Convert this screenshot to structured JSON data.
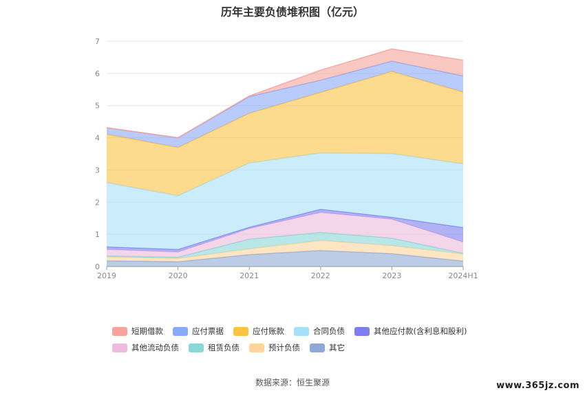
{
  "chart_data": {
    "type": "area",
    "title": "历年主要负债堆积图（亿元）",
    "categories": [
      "2019",
      "2020",
      "2021",
      "2022",
      "2023",
      "2024H1"
    ],
    "ylim": [
      0,
      7
    ],
    "yticks": [
      "0",
      "1",
      "2",
      "3",
      "4",
      "5",
      "6",
      "7"
    ],
    "stacked": true,
    "grid": true,
    "legend_position": "bottom",
    "series": [
      {
        "name": "其它",
        "color": "#8fa9d6",
        "values": [
          0.18,
          0.15,
          0.37,
          0.5,
          0.4,
          0.17
        ]
      },
      {
        "name": "预计负债",
        "color": "#fdd59c",
        "values": [
          0.12,
          0.1,
          0.18,
          0.31,
          0.25,
          0.22
        ]
      },
      {
        "name": "租赁负债",
        "color": "#8ad7d8",
        "values": [
          0.03,
          0.04,
          0.3,
          0.25,
          0.23,
          0.02
        ]
      },
      {
        "name": "其他流动负债",
        "color": "#ecbbdd",
        "values": [
          0.2,
          0.16,
          0.33,
          0.62,
          0.59,
          0.35
        ]
      },
      {
        "name": "其他应付款(含利息和股利)",
        "color": "#7d7df0",
        "values": [
          0.08,
          0.08,
          0.04,
          0.1,
          0.06,
          0.45
        ]
      },
      {
        "name": "合同负债",
        "color": "#a7dff8",
        "values": [
          2.0,
          1.67,
          2.0,
          1.75,
          1.98,
          1.98
        ]
      },
      {
        "name": "应付账款",
        "color": "#fbc342",
        "values": [
          1.5,
          1.5,
          1.54,
          1.88,
          2.55,
          2.23
        ]
      },
      {
        "name": "应付票据",
        "color": "#89a9f9",
        "values": [
          0.2,
          0.3,
          0.52,
          0.38,
          0.32,
          0.5
        ]
      },
      {
        "name": "短期借款",
        "color": "#f6a39b",
        "values": [
          0.0,
          0.0,
          0.02,
          0.31,
          0.38,
          0.49
        ]
      }
    ]
  },
  "legend": {
    "rows": [
      [
        {
          "label": "短期借款",
          "color": "#f6a39b"
        },
        {
          "label": "应付票据",
          "color": "#89a9f9"
        },
        {
          "label": "应付账款",
          "color": "#fbc342"
        },
        {
          "label": "合同负债",
          "color": "#a7dff8"
        },
        {
          "label": "其他应付款(含利息和股利)",
          "color": "#7d7df0"
        }
      ],
      [
        {
          "label": "其他流动负债",
          "color": "#ecbbdd"
        },
        {
          "label": "租赁负债",
          "color": "#8ad7d8"
        },
        {
          "label": "预计负债",
          "color": "#fdd59c"
        },
        {
          "label": "其它",
          "color": "#8fa9d6"
        }
      ]
    ]
  },
  "source": "数据来源：恒生聚源",
  "watermark": "www.365jz.com"
}
